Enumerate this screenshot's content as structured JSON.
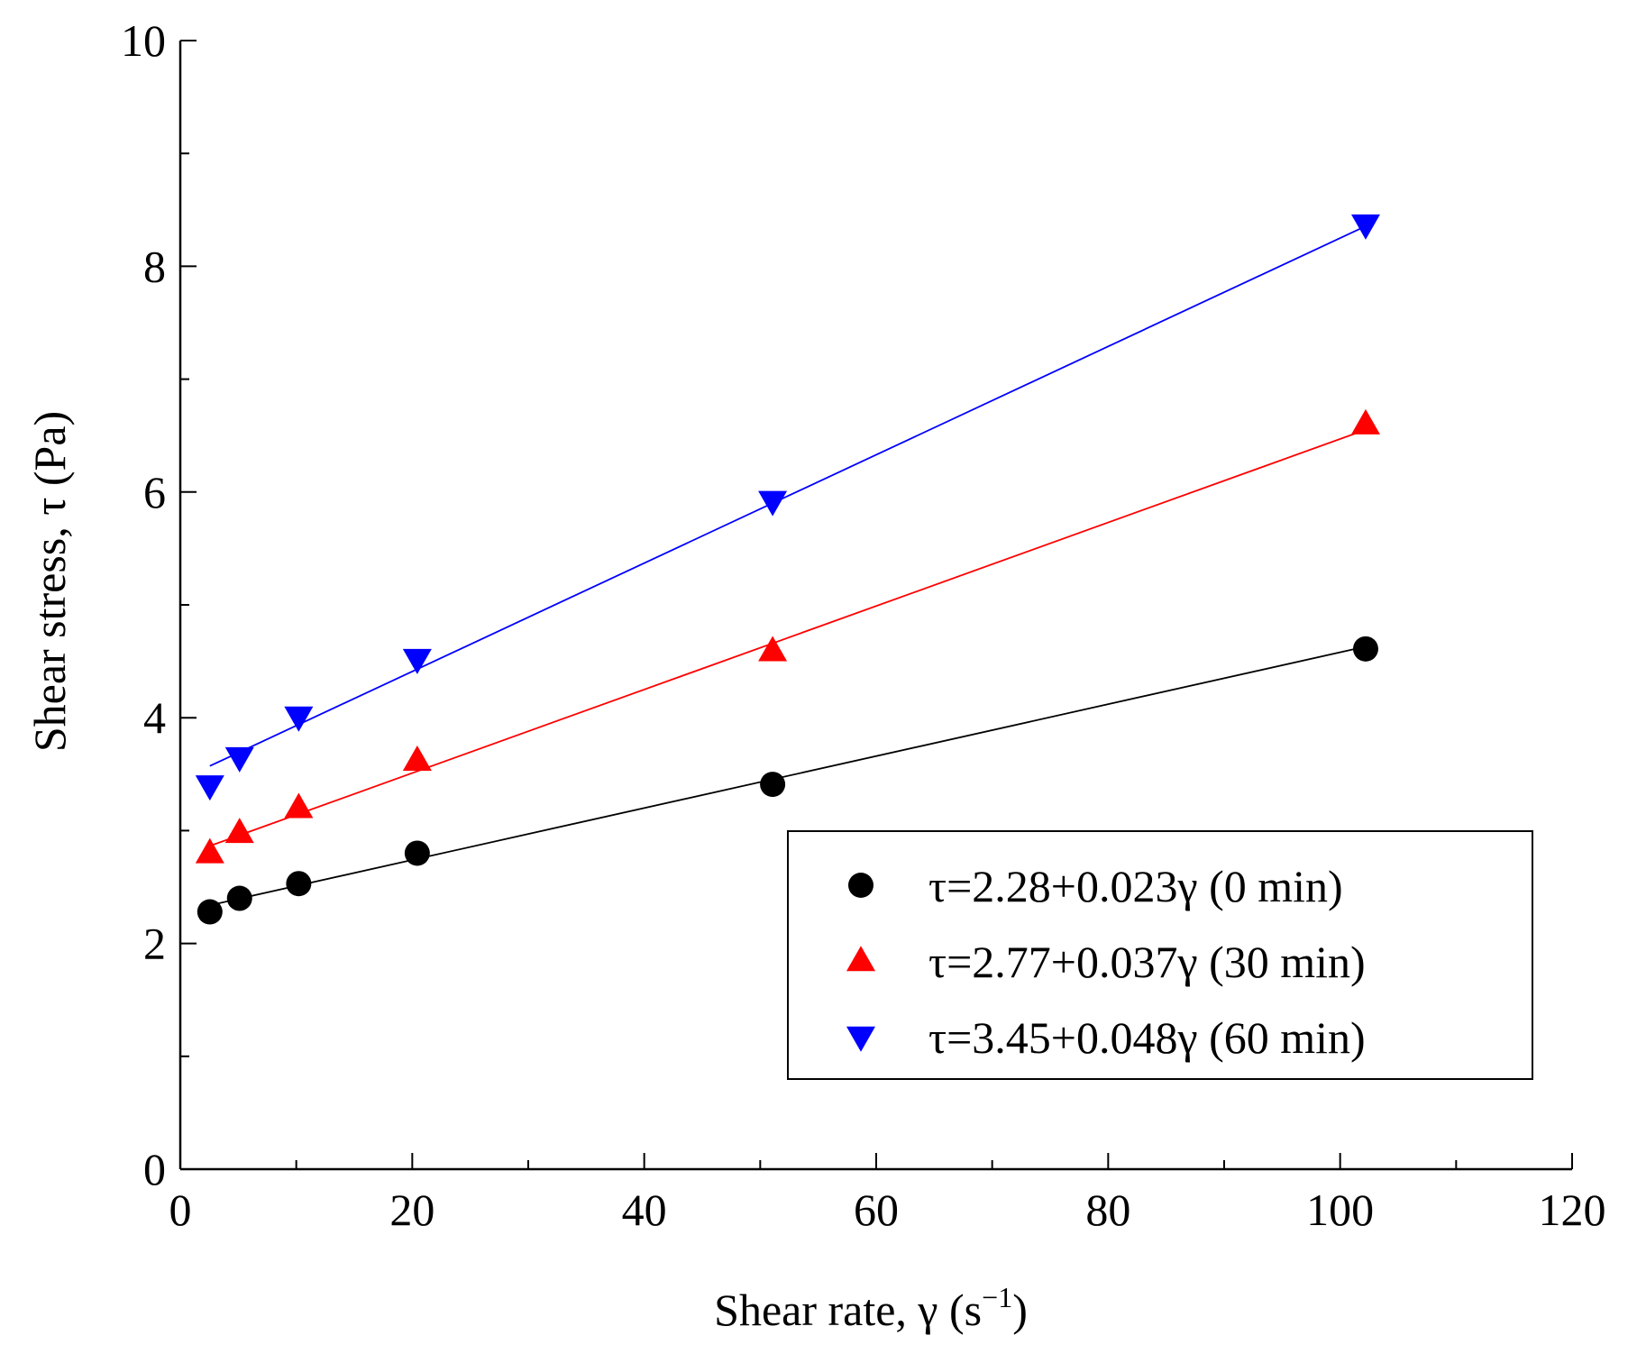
{
  "chart_data": {
    "type": "scatter",
    "xlabel": "Shear rate, γ (s",
    "xlabel_sup": "−1",
    "xlabel_end": ")",
    "ylabel": "Shear stress, τ (Pa)",
    "xlim": [
      0,
      120
    ],
    "ylim": [
      0,
      10
    ],
    "xticks": [
      0,
      20,
      40,
      60,
      80,
      100,
      120
    ],
    "yticks": [
      0,
      2,
      4,
      6,
      8,
      10
    ],
    "xtick_labels": [
      "0",
      "20",
      "40",
      "60",
      "80",
      "100",
      "120"
    ],
    "ytick_labels": [
      "0",
      "2",
      "4",
      "6",
      "8",
      "10"
    ],
    "x_minor_step": 10,
    "y_minor_step": 1,
    "grid": false,
    "legend_position": "bottom-right",
    "series": [
      {
        "name": "τ=2.28+0.023γ  (0 min)",
        "marker": "circle",
        "color": "#000000",
        "intercept": 2.28,
        "slope": 0.023,
        "fit_x_range": [
          2.55,
          102.2
        ],
        "x": [
          2.55,
          5.11,
          10.21,
          20.43,
          51.07,
          102.2
        ],
        "y": [
          2.28,
          2.4,
          2.53,
          2.8,
          3.41,
          4.61
        ]
      },
      {
        "name": "τ=2.77+0.037γ  (30 min)",
        "marker": "triangle-up",
        "color": "#ff0000",
        "intercept": 2.77,
        "slope": 0.037,
        "fit_x_range": [
          2.55,
          102.2
        ],
        "x": [
          2.55,
          5.11,
          10.21,
          20.43,
          51.07,
          102.2
        ],
        "y": [
          2.8,
          2.98,
          3.2,
          3.62,
          4.59,
          6.6
        ]
      },
      {
        "name": "τ=3.45+0.048γ  (60 min)",
        "marker": "triangle-down",
        "color": "#0000ff",
        "intercept": 3.45,
        "slope": 0.048,
        "fit_x_range": [
          2.55,
          102.2
        ],
        "x": [
          2.55,
          5.11,
          10.21,
          20.43,
          51.07,
          102.2
        ],
        "y": [
          3.4,
          3.65,
          4.01,
          4.52,
          5.92,
          8.37
        ]
      }
    ]
  }
}
